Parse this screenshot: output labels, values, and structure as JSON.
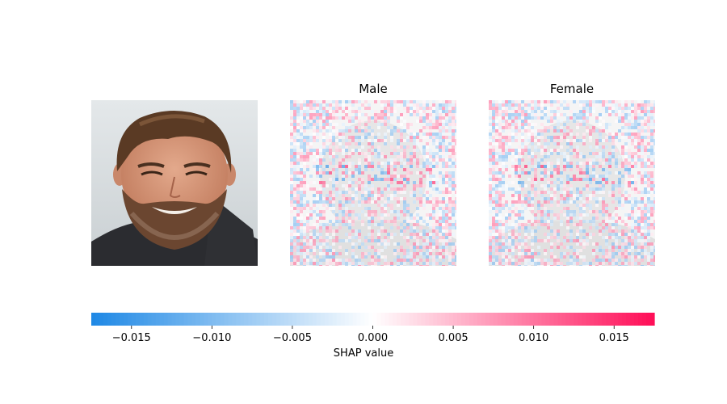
{
  "chart_data": {
    "type": "heatmap",
    "panels": [
      {
        "name": "input-image",
        "title": ""
      },
      {
        "name": "male-explanation",
        "title": "Male"
      },
      {
        "name": "female-explanation",
        "title": "Female"
      }
    ],
    "colorbar": {
      "label": "SHAP value",
      "range": [
        -0.0175,
        0.0175
      ],
      "ticks": [
        -0.015,
        -0.01,
        -0.005,
        0.0,
        0.005,
        0.01,
        0.015
      ],
      "tick_labels": [
        "−0.015",
        "−0.010",
        "−0.005",
        "0.000",
        "0.005",
        "0.010",
        "0.015"
      ],
      "negative_color": "#1e88e5",
      "positive_color": "#ff0d57"
    }
  }
}
